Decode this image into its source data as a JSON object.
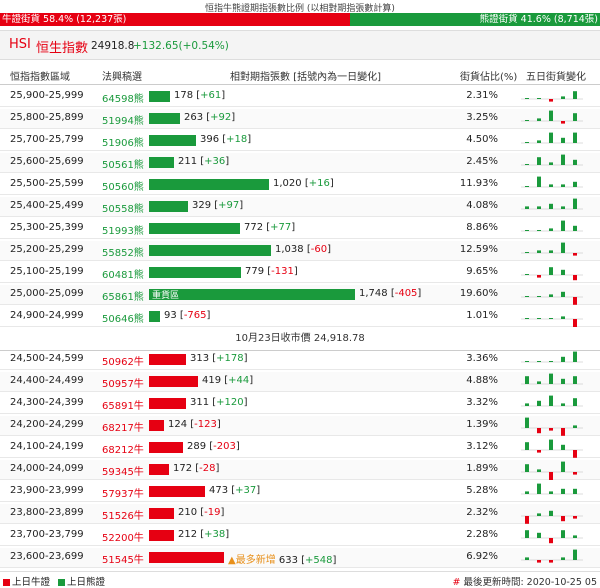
{
  "header": {
    "title": "恒指牛熊證期指張數比例 (以相對期指張數計算)",
    "bull_label": "牛證街貨 58.4% (12,237張)",
    "bear_label": "熊證街貨 41.6% (8,714張)",
    "bull_ratio": 0.584,
    "bear_ratio": 0.416,
    "bull_color": "#e60012",
    "bear_color": "#1a9a3c"
  },
  "index": {
    "code": "HSI",
    "name": "恒生指數",
    "price": "24918.8",
    "change": "+132.65(+0.54%)"
  },
  "columns": {
    "range": "恒指指數區域",
    "cbbc": "法興稿選",
    "futures": "相對期指張數 [括號內為一日變化]",
    "ratio": "街貨佔比(%)",
    "trend": "五日街貨變化"
  },
  "bear_rows": [
    {
      "range": "25,900-25,999",
      "cbbc": "64598熊",
      "value": 178,
      "change": "+61",
      "ratio": "2.31%",
      "spark": [
        0,
        0,
        -1,
        1,
        3
      ]
    },
    {
      "range": "25,800-25,899",
      "cbbc": "51994熊",
      "value": 263,
      "change": "+92",
      "ratio": "3.25%",
      "spark": [
        0,
        1,
        4,
        -1,
        3
      ]
    },
    {
      "range": "25,700-25,799",
      "cbbc": "51906熊",
      "value": 396,
      "change": "+18",
      "ratio": "4.50%",
      "spark": [
        0,
        1,
        4,
        2,
        4
      ]
    },
    {
      "range": "25,600-25,699",
      "cbbc": "50561熊",
      "value": 211,
      "change": "+36",
      "ratio": "2.45%",
      "spark": [
        0,
        3,
        1,
        4,
        2
      ]
    },
    {
      "range": "25,500-25,599",
      "cbbc": "50560熊",
      "value": 1020,
      "change": "+16",
      "ratio": "11.93%",
      "spark": [
        0,
        4,
        1,
        1,
        2
      ]
    },
    {
      "range": "25,400-25,499",
      "cbbc": "50558熊",
      "value": 329,
      "change": "+97",
      "ratio": "4.08%",
      "spark": [
        1,
        1,
        2,
        1,
        4
      ]
    },
    {
      "range": "25,300-25,399",
      "cbbc": "51993熊",
      "value": 772,
      "change": "+77",
      "ratio": "8.86%",
      "spark": [
        0,
        0,
        1,
        4,
        2
      ]
    },
    {
      "range": "25,200-25,299",
      "cbbc": "55852熊",
      "value": 1038,
      "change": "-60",
      "ratio": "12.59%",
      "spark": [
        0,
        1,
        1,
        4,
        -1
      ]
    },
    {
      "range": "25,100-25,199",
      "cbbc": "60481熊",
      "value": 779,
      "change": "-131",
      "ratio": "9.65%",
      "spark": [
        0,
        -1,
        3,
        2,
        -2
      ]
    },
    {
      "range": "25,000-25,099",
      "cbbc": "65861熊",
      "value": 1748,
      "change": "-405",
      "ratio": "19.60%",
      "label": "重貨區",
      "spark": [
        0,
        0,
        1,
        2,
        -3
      ]
    },
    {
      "range": "24,900-24,999",
      "cbbc": "50646熊",
      "value": 93,
      "change": "-765",
      "ratio": "1.01%",
      "spark": [
        0,
        0,
        0,
        1,
        -4
      ]
    }
  ],
  "separator": "10月23日收市價 24,918.78",
  "bull_rows": [
    {
      "range": "24,500-24,599",
      "cbbc": "50962牛",
      "value": 313,
      "change": "+178",
      "ratio": "3.36%",
      "spark": [
        0,
        0,
        0,
        2,
        4
      ]
    },
    {
      "range": "24,400-24,499",
      "cbbc": "50957牛",
      "value": 419,
      "change": "+44",
      "ratio": "4.88%",
      "spark": [
        3,
        1,
        4,
        2,
        3
      ]
    },
    {
      "range": "24,300-24,399",
      "cbbc": "65891牛",
      "value": 311,
      "change": "+120",
      "ratio": "3.32%",
      "spark": [
        1,
        2,
        4,
        1,
        3
      ]
    },
    {
      "range": "24,200-24,299",
      "cbbc": "68217牛",
      "value": 124,
      "change": "-123",
      "ratio": "1.39%",
      "spark": [
        4,
        -2,
        -1,
        -3,
        1
      ]
    },
    {
      "range": "24,100-24,199",
      "cbbc": "68212牛",
      "value": 289,
      "change": "-203",
      "ratio": "3.12%",
      "spark": [
        3,
        -1,
        4,
        2,
        -3
      ]
    },
    {
      "range": "24,000-24,099",
      "cbbc": "59345牛",
      "value": 172,
      "change": "-28",
      "ratio": "1.89%",
      "spark": [
        3,
        1,
        -4,
        4,
        -1
      ]
    },
    {
      "range": "23,900-23,999",
      "cbbc": "57937牛",
      "value": 473,
      "change": "+37",
      "ratio": "5.28%",
      "spark": [
        1,
        4,
        1,
        2,
        2
      ]
    },
    {
      "range": "23,800-23,899",
      "cbbc": "51526牛",
      "value": 210,
      "change": "-19",
      "ratio": "2.32%",
      "spark": [
        -3,
        1,
        2,
        -2,
        -1
      ]
    },
    {
      "range": "23,700-23,799",
      "cbbc": "52200牛",
      "value": 212,
      "change": "+38",
      "ratio": "2.28%",
      "spark": [
        3,
        2,
        -2,
        3,
        1
      ]
    },
    {
      "range": "23,600-23,699",
      "cbbc": "51545牛",
      "value": 633,
      "change": "+548",
      "ratio": "6.92%",
      "note": "▲最多新增",
      "spark": [
        1,
        -1,
        -1,
        1,
        4
      ]
    }
  ],
  "legend": {
    "prev_bull": "上日牛證",
    "prev_bear": "上日熊證",
    "updated": "最後更新時間: 2020-10-25 05",
    "updated_hash": "#"
  }
}
